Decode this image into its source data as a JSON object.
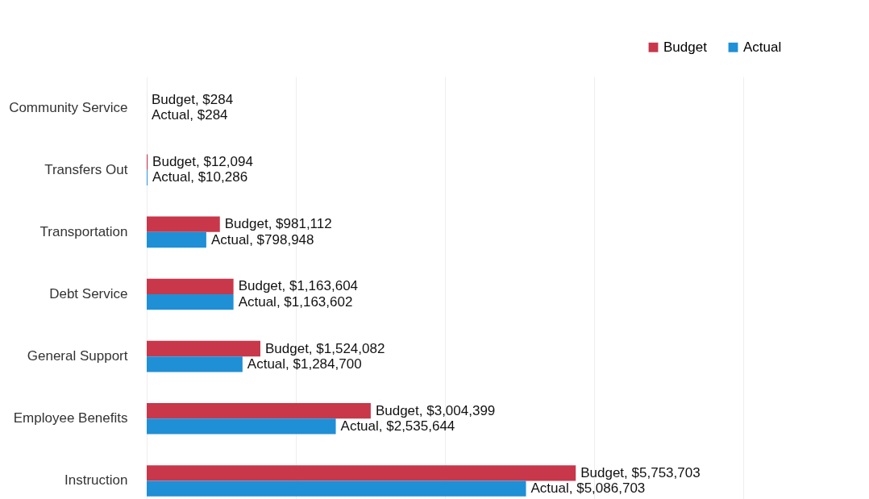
{
  "chart_data": {
    "type": "bar",
    "orientation": "horizontal",
    "categories": [
      "Community Service",
      "Transfers Out",
      "Transportation",
      "Debt Service",
      "General Support",
      "Employee Benefits",
      "Instruction"
    ],
    "series": [
      {
        "name": "Budget",
        "color": "#c8374a",
        "values": [
          284,
          12094,
          981112,
          1163604,
          1524082,
          3004399,
          5753703
        ],
        "value_labels": [
          "Budget, $284",
          "Budget, $12,094",
          "Budget, $981,112",
          "Budget, $1,163,604",
          "Budget, $1,524,082",
          "Budget, $3,004,399",
          "Budget, $5,753,703"
        ]
      },
      {
        "name": "Actual",
        "color": "#1f8fd6",
        "values": [
          284,
          10286,
          798948,
          1163602,
          1284700,
          2535644,
          5086703
        ],
        "value_labels": [
          "Actual, $284",
          "Actual, $10,286",
          "Actual, $798,948",
          "Actual, $1,163,602",
          "Actual, $1,284,700",
          "Actual, $2,535,644",
          "Actual, $5,086,703"
        ]
      }
    ],
    "xlim": [
      0,
      8000000
    ],
    "xticks": [
      {
        "value": 0,
        "label": null
      },
      {
        "value": 2000000,
        "label": null
      },
      {
        "value": 4000000,
        "label": null
      },
      {
        "value": 6000000,
        "label": null
      },
      {
        "value": 8000000,
        "label": null
      }
    ],
    "grid": "x",
    "legend": "top right",
    "tick_labels": "y"
  }
}
